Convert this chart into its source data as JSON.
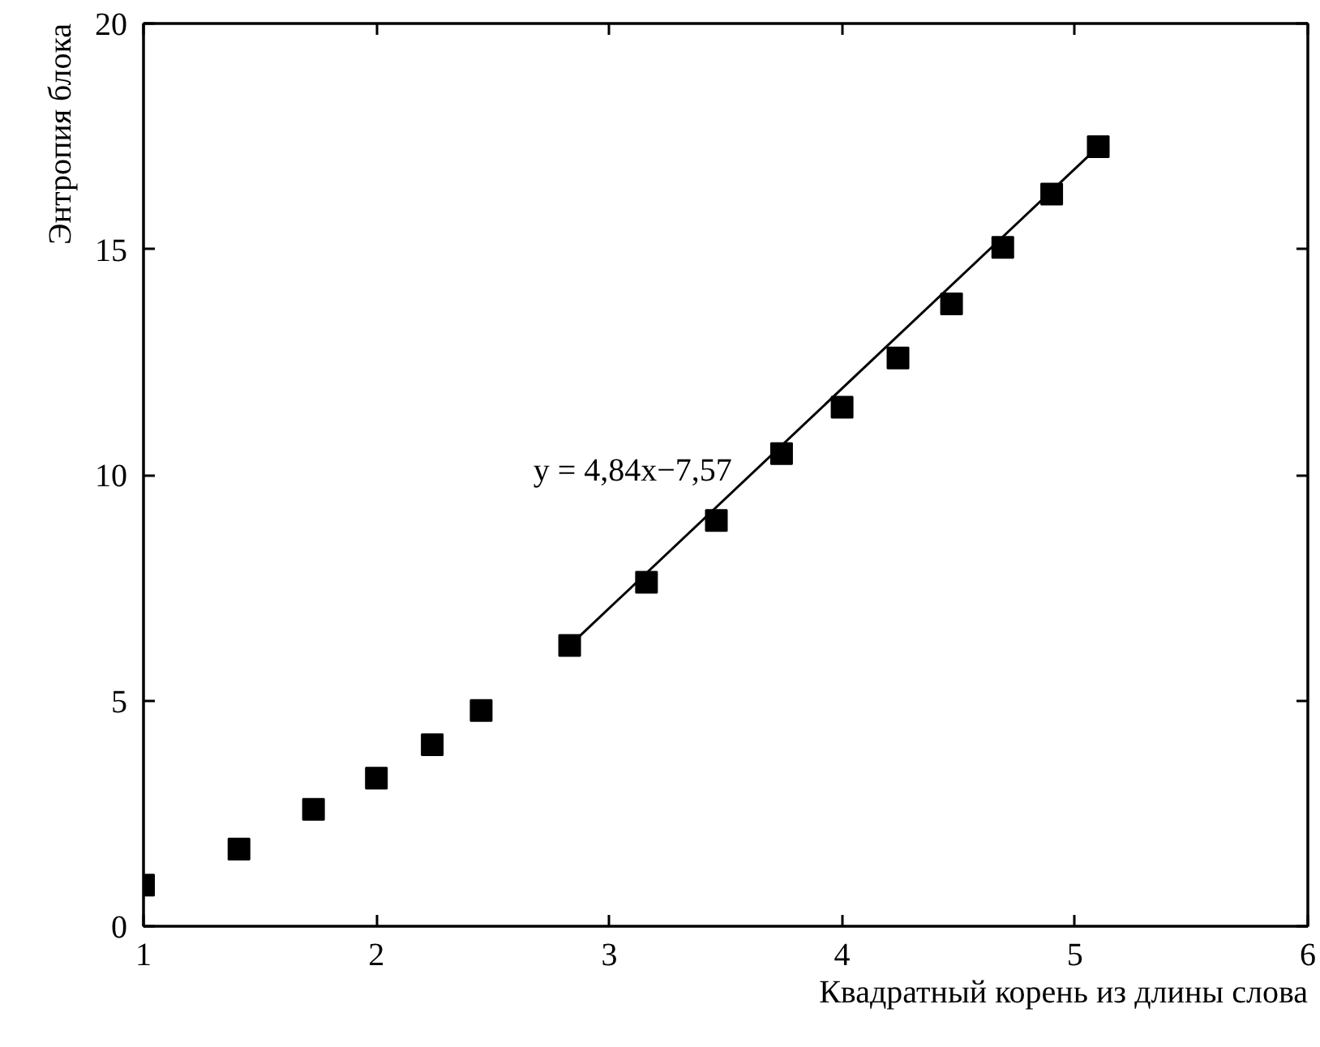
{
  "chart_data": {
    "type": "scatter",
    "xlabel": "Квадратный корень из длины слова",
    "ylabel": "Энтропия блока",
    "xlim": [
      1,
      6
    ],
    "ylim": [
      0,
      20
    ],
    "xticks": [
      1,
      2,
      3,
      4,
      5,
      6
    ],
    "yticks": [
      0,
      5,
      10,
      15,
      20
    ],
    "grid": false,
    "line_style": "solid",
    "series": [
      {
        "color": "#000000",
        "marker": "square",
        "x": [
          1.0,
          1.41,
          1.73,
          2.0,
          2.24,
          2.45,
          2.83,
          3.16,
          3.46,
          3.74,
          4.0,
          4.24,
          4.47,
          4.69,
          4.9,
          5.1
        ],
        "values": [
          0.91,
          1.71,
          2.59,
          3.28,
          4.02,
          4.78,
          6.22,
          7.62,
          8.99,
          10.47,
          11.5,
          12.59,
          13.79,
          15.04,
          16.22,
          17.27
        ]
      },
      {
        "type": "line",
        "color": "#000000",
        "x": [
          2.83,
          5.1
        ],
        "values": [
          6.22,
          17.27
        ]
      }
    ],
    "annotations": [
      "y = 4,84x−7,57"
    ]
  }
}
